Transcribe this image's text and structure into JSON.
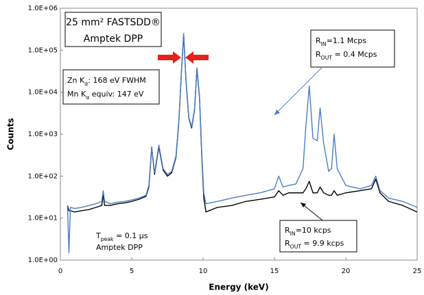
{
  "chart_data": {
    "type": "line",
    "x_label": "Energy (keV)",
    "y_label": "Counts",
    "log_y": true,
    "grid": false,
    "xlim": [
      0,
      25
    ],
    "xticks": [
      0,
      5,
      10,
      15,
      20,
      25
    ],
    "ylim": [
      1,
      1000000
    ],
    "yticks": [
      {
        "value": 1,
        "label": "1.0E+00"
      },
      {
        "value": 10,
        "label": "1.0E+01"
      },
      {
        "value": 100,
        "label": "1.0E+02"
      },
      {
        "value": 1000,
        "label": "1.0E+03"
      },
      {
        "value": 10000,
        "label": "1.0E+04"
      },
      {
        "value": 100000,
        "label": "1.0E+05"
      },
      {
        "value": 1000000,
        "label": "1.0E+06"
      }
    ],
    "x": [
      0.5,
      0.6,
      0.7,
      1,
      1.5,
      2,
      2.5,
      2.9,
      3.0,
      3.1,
      3.5,
      4,
      4.5,
      5,
      5.5,
      6,
      6.2,
      6.4,
      6.6,
      6.9,
      7.2,
      7.5,
      7.8,
      8.1,
      8.3,
      8.5,
      8.64,
      8.8,
      9.0,
      9.2,
      9.4,
      9.57,
      9.75,
      9.9,
      10.05,
      10.2,
      11,
      12,
      13,
      14,
      15,
      15.3,
      15.6,
      16,
      16.5,
      17,
      17.2,
      17.44,
      17.7,
      18.0,
      18.2,
      18.45,
      18.8,
      19.0,
      19.18,
      19.4,
      20,
      21,
      21.8,
      22.1,
      22.4,
      23,
      24,
      25
    ],
    "series": [
      {
        "color": "#000000",
        "values": [
          20,
          15,
          15,
          14,
          15,
          16,
          18,
          20,
          35,
          20,
          20,
          22,
          23,
          25,
          28,
          33,
          55,
          480,
          110,
          500,
          140,
          100,
          120,
          280,
          1900,
          38000,
          240000,
          19000,
          2400,
          1400,
          3800,
          36000,
          7500,
          350,
          30,
          14,
          18,
          20,
          25,
          28,
          32,
          45,
          35,
          40,
          40,
          40,
          50,
          75,
          40,
          40,
          55,
          40,
          35,
          35,
          45,
          35,
          40,
          45,
          50,
          85,
          40,
          25,
          20,
          14
        ]
      },
      {
        "color": "#4a7cc7",
        "values": [
          20,
          1.5,
          18,
          17,
          18,
          20,
          22,
          25,
          45,
          25,
          22,
          24,
          25,
          27,
          30,
          35,
          60,
          500,
          120,
          550,
          150,
          110,
          130,
          300,
          2000,
          40000,
          250000,
          20000,
          2500,
          1500,
          4000,
          38000,
          8000,
          400,
          40,
          22,
          25,
          30,
          35,
          40,
          50,
          100,
          55,
          60,
          65,
          150,
          1500,
          14000,
          800,
          700,
          4200,
          600,
          130,
          150,
          1000,
          150,
          60,
          50,
          60,
          100,
          45,
          30,
          25,
          18
        ]
      }
    ],
    "annotations": [
      {
        "lines": [
          [
            {
              "text": "25 mm² FASTSDD®"
            }
          ],
          [
            {
              "text": "Amptek DPP"
            }
          ]
        ]
      },
      {
        "lines": [
          [
            {
              "text": "Zn K"
            },
            {
              "text": "α",
              "sub": true
            },
            {
              "text": ": 168 eV FWHM"
            }
          ],
          [
            {
              "text": "Mn K"
            },
            {
              "text": "α",
              "sub": true
            },
            {
              "text": " equiv: 147 eV"
            }
          ]
        ]
      },
      {
        "lines": [
          [
            {
              "text": "R"
            },
            {
              "text": "IN",
              "sub": true
            },
            {
              "text": "=1.1 Mcps"
            }
          ],
          [
            {
              "text": "R"
            },
            {
              "text": "OUT",
              "sub": true
            },
            {
              "text": " = 0.4 Mcps"
            }
          ]
        ]
      },
      {
        "lines": [
          [
            {
              "text": "R"
            },
            {
              "text": "IN",
              "sub": true
            },
            {
              "text": "=10 kcps"
            }
          ],
          [
            {
              "text": "R"
            },
            {
              "text": "OUT",
              "sub": true
            },
            {
              "text": " = 9.9 kcps"
            }
          ]
        ]
      },
      {
        "lines": [
          [
            {
              "text": "T"
            },
            {
              "text": "peak",
              "sub": true
            },
            {
              "text": " = 0.1 µs"
            }
          ],
          [
            {
              "text": "Amptek DPP"
            }
          ]
        ]
      }
    ]
  }
}
